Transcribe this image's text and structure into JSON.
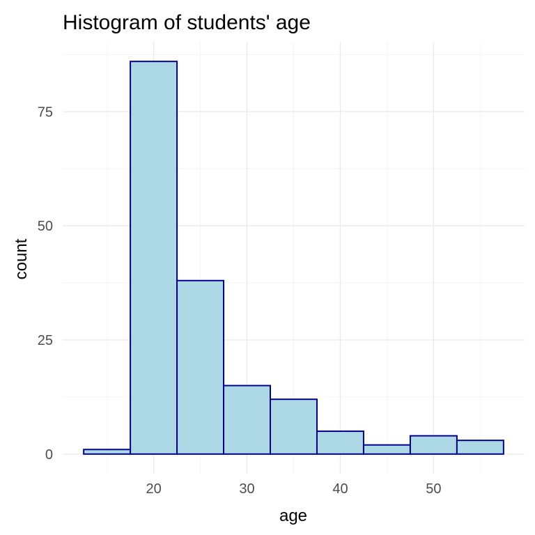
{
  "chart_data": {
    "type": "bar",
    "title": "Histogram of students' age",
    "xlabel": "age",
    "ylabel": "count",
    "bin_width": 5,
    "bins": [
      {
        "x": 15,
        "count": 1
      },
      {
        "x": 20,
        "count": 86
      },
      {
        "x": 25,
        "count": 38
      },
      {
        "x": 30,
        "count": 15
      },
      {
        "x": 35,
        "count": 12
      },
      {
        "x": 40,
        "count": 5
      },
      {
        "x": 45,
        "count": 2
      },
      {
        "x": 50,
        "count": 4
      },
      {
        "x": 55,
        "count": 3
      }
    ],
    "xlim": [
      10.25,
      59.75
    ],
    "ylim": [
      -4.3,
      90.3
    ],
    "x_ticks": [
      20,
      30,
      40,
      50
    ],
    "y_ticks": [
      0,
      25,
      50,
      75
    ],
    "grid": true,
    "legend": "none",
    "colors": {
      "bar_fill": "#add8e6",
      "bar_outline": "#00008b",
      "grid": "#ebebeb"
    }
  }
}
